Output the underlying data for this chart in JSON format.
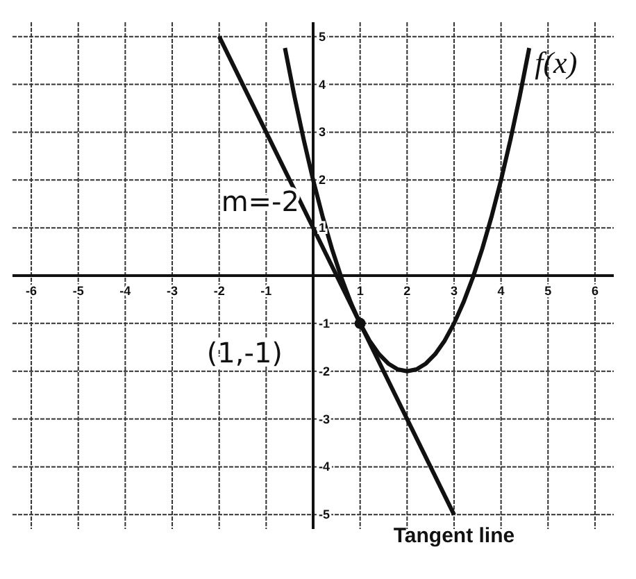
{
  "chart_data": {
    "type": "line",
    "xlim": [
      -6.4,
      6.4
    ],
    "ylim": [
      -5.3,
      5.3
    ],
    "xticks": [
      -6,
      -5,
      -4,
      -3,
      -2,
      -1,
      {
        "value": 0,
        "label": null
      },
      1,
      2,
      3,
      4,
      5,
      6
    ],
    "yticks": [
      -5,
      -4,
      -3,
      -2,
      -1,
      {
        "value": 0,
        "label": null
      },
      1,
      2,
      3,
      4,
      5
    ],
    "grid": true,
    "series": [
      {
        "name": "f(x)",
        "color": "#111111",
        "x": [
          -0.6,
          -0.4,
          -0.2,
          0,
          0.2,
          0.4,
          0.6,
          0.8,
          1,
          1.2,
          1.4,
          1.6,
          1.8,
          2,
          2.2,
          2.4,
          2.6,
          2.8,
          3,
          3.2,
          3.4,
          3.6,
          3.8,
          4,
          4.2,
          4.4,
          4.6
        ],
        "values": [
          4.76,
          3.76,
          2.84,
          2,
          1.24,
          0.56,
          -0.04,
          -0.56,
          -1,
          -1.36,
          -1.64,
          -1.84,
          -1.96,
          -2,
          -1.96,
          -1.84,
          -1.64,
          -1.36,
          -1,
          -0.56,
          -0.04,
          0.56,
          1.24,
          2,
          2.84,
          3.76,
          4.76
        ]
      },
      {
        "name": "Tangent line",
        "color": "#111111",
        "x": [
          -2,
          3
        ],
        "values": [
          5,
          -5
        ]
      },
      {
        "type": "scatter",
        "color": "#111111",
        "x": [
          1
        ],
        "values": [
          -1
        ]
      }
    ],
    "annotations": [
      {
        "text": "m=-2",
        "x": 0,
        "y": 1
      },
      {
        "text": "(1,-1)",
        "x": 1,
        "y": -1
      }
    ]
  }
}
